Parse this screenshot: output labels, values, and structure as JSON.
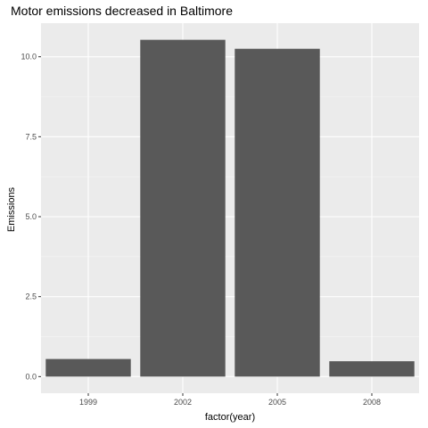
{
  "chart_data": {
    "type": "bar",
    "title": "Motor emissions decreased in Baltimore",
    "xlabel": "factor(year)",
    "ylabel": "Emissions",
    "categories": [
      "1999",
      "2002",
      "2005",
      "2008"
    ],
    "values": [
      0.55,
      10.53,
      10.25,
      0.48
    ],
    "ylim": [
      -0.52,
      11.05
    ],
    "yticks": [
      0.0,
      2.5,
      5.0,
      7.5,
      10.0
    ],
    "ytick_labels": [
      "0.0",
      "2.5",
      "5.0",
      "7.5",
      "10.0"
    ],
    "grid": true,
    "legend": "none",
    "colors": {
      "bar": "#595959",
      "panel": "#ebebeb",
      "grid_major": "#ffffff",
      "grid_minor": "#f5f5f5",
      "tick_label": "#4d4d4d",
      "tick_mark": "#333333"
    }
  }
}
